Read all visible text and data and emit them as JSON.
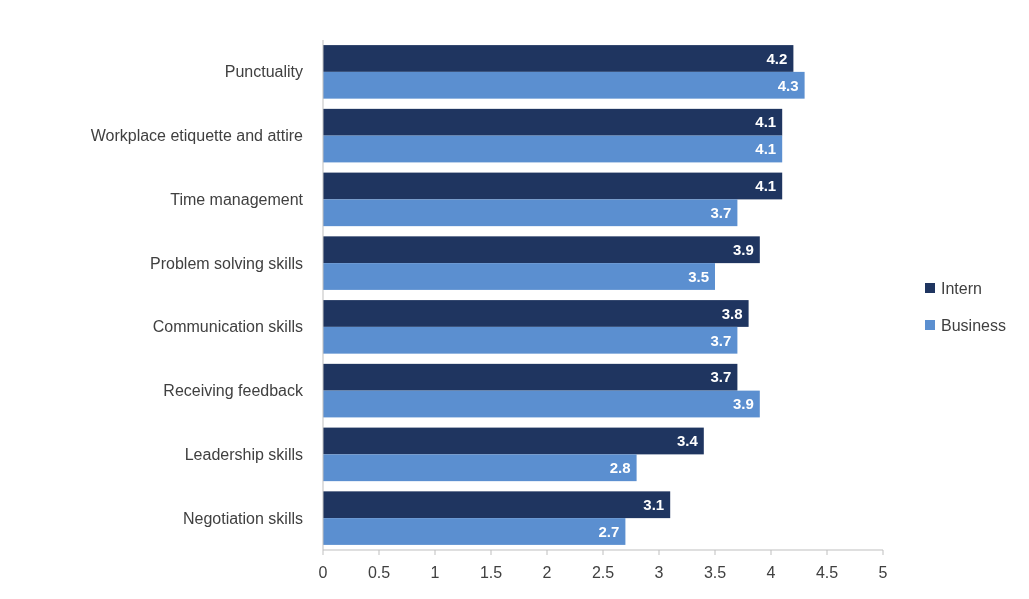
{
  "chart_data": {
    "type": "bar",
    "orientation": "horizontal",
    "categories": [
      "Punctuality",
      "Workplace etiquette and attire",
      "Time management",
      "Problem solving skills",
      "Communication skills",
      "Receiving feedback",
      "Leadership skills",
      "Negotiation skills"
    ],
    "series": [
      {
        "name": "Intern",
        "color": "#1f3560",
        "values": [
          4.2,
          4.1,
          4.1,
          3.9,
          3.8,
          3.7,
          3.4,
          3.1
        ]
      },
      {
        "name": "Business",
        "color": "#5b8fd0",
        "values": [
          4.3,
          4.1,
          3.7,
          3.5,
          3.7,
          3.9,
          2.8,
          2.7
        ]
      }
    ],
    "xlim": [
      0,
      5
    ],
    "xticks": [
      0,
      0.5,
      1,
      1.5,
      2,
      2.5,
      3,
      3.5,
      4,
      4.5,
      5
    ],
    "data_labels": true,
    "legend": "right",
    "grid": false
  }
}
